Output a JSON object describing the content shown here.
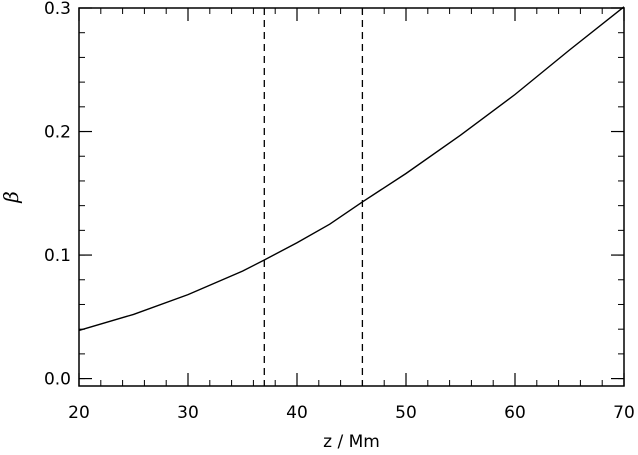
{
  "chart_data": {
    "type": "line",
    "title": "",
    "xlabel": "z / Mm",
    "ylabel": "β",
    "xlim": [
      20,
      70
    ],
    "ylim": [
      -0.006,
      0.3
    ],
    "x_ticks": [
      20,
      30,
      40,
      50,
      60,
      70
    ],
    "x_tick_labels": [
      "20",
      "30",
      "40",
      "50",
      "60",
      "70"
    ],
    "y_ticks": [
      0.0,
      0.1,
      0.2,
      0.3
    ],
    "y_tick_labels": [
      "0.0",
      "0.1",
      "0.2",
      "0.3"
    ],
    "x_minor_step": 2,
    "y_minor_step": 0.02,
    "grid": false,
    "series": [
      {
        "style": "solid",
        "color": "#000000",
        "x": [
          20,
          25,
          30,
          35,
          37,
          40,
          43,
          46,
          50,
          55,
          60,
          65,
          70
        ],
        "y": [
          0.039,
          0.052,
          0.068,
          0.087,
          0.096,
          0.11,
          0.125,
          0.143,
          0.166,
          0.197,
          0.23,
          0.266,
          0.301
        ]
      }
    ],
    "vertical_lines": [
      {
        "x": 37,
        "style": "dashed"
      },
      {
        "x": 46,
        "style": "dashed"
      }
    ]
  }
}
